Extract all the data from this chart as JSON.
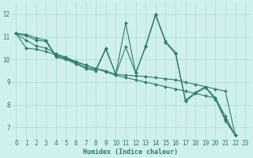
{
  "bg_color": "#cff0ec",
  "line_color": "#2e7d6e",
  "grid_color": "#aaddd8",
  "xlabel": "Humidex (Indice chaleur)",
  "xlim": [
    -0.5,
    23.5
  ],
  "ylim": [
    6.5,
    12.5
  ],
  "yticks": [
    7,
    8,
    9,
    10,
    11,
    12
  ],
  "xticks": [
    0,
    1,
    2,
    3,
    4,
    5,
    6,
    7,
    8,
    9,
    10,
    11,
    12,
    13,
    14,
    15,
    16,
    17,
    18,
    19,
    20,
    21,
    22,
    23
  ],
  "series": [
    [
      11.15,
      11.1,
      10.95,
      10.85,
      10.15,
      10.05,
      9.85,
      9.65,
      9.55,
      10.5,
      9.35,
      11.6,
      9.4,
      10.6,
      12.0,
      10.8,
      10.3,
      8.2,
      8.55,
      8.8,
      8.3,
      7.35,
      6.65
    ],
    [
      11.15,
      11.05,
      10.85,
      10.8,
      10.1,
      10.0,
      9.8,
      9.6,
      9.5,
      10.45,
      9.35,
      10.55,
      9.4,
      10.55,
      11.95,
      10.75,
      10.25,
      8.15,
      8.5,
      8.75,
      8.25,
      7.3,
      6.65
    ],
    [
      11.15,
      10.85,
      10.6,
      10.5,
      10.25,
      10.1,
      9.9,
      9.75,
      9.6,
      9.5,
      9.35,
      9.3,
      9.28,
      9.25,
      9.2,
      9.15,
      9.1,
      9.0,
      8.9,
      8.8,
      8.7,
      8.6,
      6.65
    ],
    [
      11.15,
      10.5,
      10.45,
      10.35,
      10.2,
      10.05,
      9.9,
      9.75,
      9.6,
      9.45,
      9.3,
      9.2,
      9.1,
      9.0,
      8.9,
      8.8,
      8.7,
      8.6,
      8.5,
      8.4,
      8.3,
      7.5,
      6.65
    ]
  ],
  "xlabel_fontsize": 6,
  "tick_fontsize": 5.5,
  "figsize": [
    3.2,
    2.0
  ],
  "dpi": 100
}
